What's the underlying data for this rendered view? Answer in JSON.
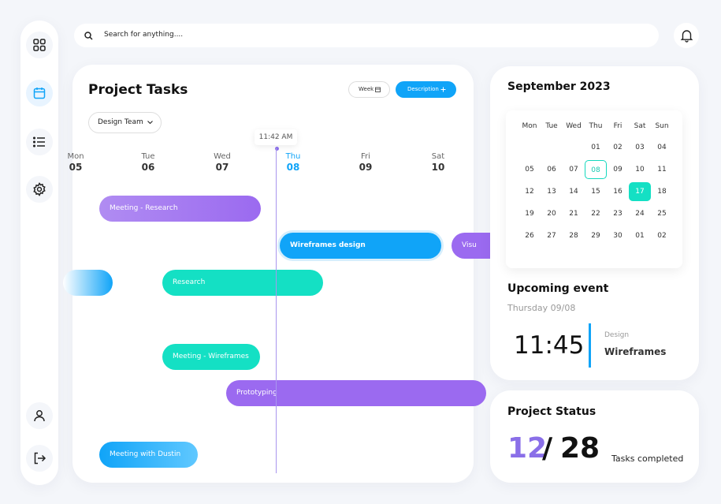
{
  "search": {
    "placeholder": "Search for anything...."
  },
  "tasks": {
    "title": "Project Tasks",
    "week_button": "Week",
    "description_button": "Description",
    "filter": "Design Team",
    "now_time": "11:42 AM",
    "days": [
      {
        "name": "Mon",
        "date": "05"
      },
      {
        "name": "Tue",
        "date": "06"
      },
      {
        "name": "Wed",
        "date": "07"
      },
      {
        "name": "Thu",
        "date": "08"
      },
      {
        "name": "Fri",
        "date": "09"
      },
      {
        "name": "Sat",
        "date": "10"
      }
    ],
    "events": [
      "Meeting - Research",
      "Wireframes design",
      "Visu",
      null,
      "Research",
      "Meeting - Wireframes",
      "Prototyping",
      "Meeting with Dustin"
    ]
  },
  "calendar": {
    "title": "September 2023",
    "weekdays": [
      "Mon",
      "Tue",
      "Wed",
      "Thu",
      "Fri",
      "Sat",
      "Sun"
    ],
    "weeks": [
      [
        null,
        null,
        null,
        "01",
        "02",
        "03",
        "04"
      ],
      [
        "05",
        "06",
        "07",
        "08",
        "09",
        "10",
        "11"
      ],
      [
        "12",
        "13",
        "14",
        "15",
        "16",
        "17",
        "18"
      ],
      [
        "19",
        "20",
        "21",
        "22",
        "23",
        "24",
        "25"
      ],
      [
        "26",
        "27",
        "28",
        "29",
        "30",
        "01",
        "02"
      ]
    ]
  },
  "upcoming": {
    "title": "Upcoming event",
    "date": "Thursday 09/08",
    "time": "11:45",
    "category": "Design",
    "name": "Wireframes"
  },
  "status": {
    "title": "Project Status",
    "done": "12",
    "separator": "/",
    "total": "28",
    "caption": "Tasks completed"
  }
}
